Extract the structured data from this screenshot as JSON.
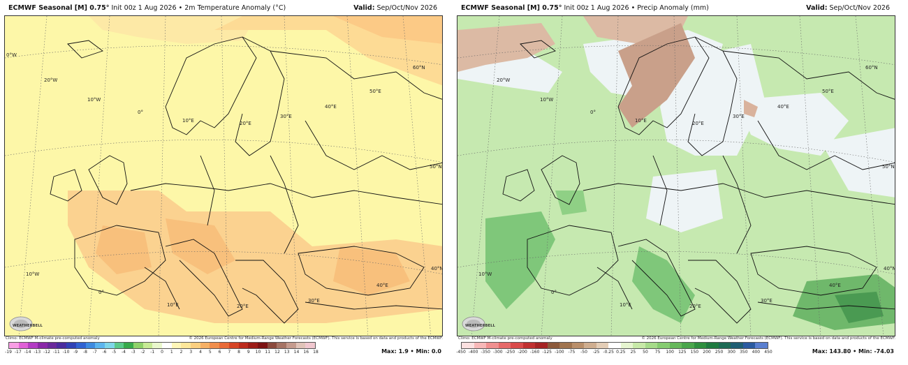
{
  "left": {
    "title_bold": "ECMWF Seasonal [M] 0.75°",
    "title_rest": " Init 00z 1 Aug 2026 • 2m Temperature Anomaly (°C)",
    "valid_bold": "Valid:",
    "valid_rest": " Sep/Oct/Nov 2026",
    "climo": "Climo: ECMWF M-climate pre-computed anomaly",
    "copyright": "© 2026 European Centre for Medium-Range Weather Forecasts (ECMWF). This service is based on data and products of the ECMWF.",
    "maxmin": "Max: 1.9 • Min: 0.0",
    "colorbar_ticks": [
      "-19",
      "-17",
      "-14",
      "-13",
      "-12",
      "-11",
      "-10",
      "-9",
      "-8",
      "-7",
      "-6",
      "-5",
      "-4",
      "-3",
      "-2",
      "-1",
      "0",
      "1",
      "2",
      "3",
      "4",
      "5",
      "6",
      "7",
      "8",
      "9",
      "10",
      "11",
      "12",
      "13",
      "14",
      "16",
      "18"
    ],
    "colorbar_colors": [
      "#f79de4",
      "#e061d7",
      "#b33cc4",
      "#8a28a8",
      "#6a2a9b",
      "#4a2d9e",
      "#3042b5",
      "#3163d1",
      "#3f8be0",
      "#5db5ee",
      "#7fd6e8",
      "#5bc98a",
      "#37a94a",
      "#8fd16a",
      "#c7ea95",
      "#e9f7cc",
      "#ffffff",
      "#fff6b8",
      "#fde79a",
      "#fbcf80",
      "#f6b066",
      "#f08e4d",
      "#e86a38",
      "#d64526",
      "#bc2b1d",
      "#9c1c17",
      "#7c1213",
      "#8b4a3d",
      "#a67465",
      "#c59b8e",
      "#e0c3b8",
      "#f0c7cf"
    ],
    "lat_labels": [
      "60°N",
      "50°N",
      "40°N"
    ],
    "lon_labels": [
      "0°W",
      "20°W",
      "10°W",
      "0°",
      "10°E",
      "20°E",
      "30°E",
      "40°E",
      "50°E",
      "10°W",
      "0°",
      "10°E",
      "20°E",
      "30°E",
      "40°E"
    ]
  },
  "right": {
    "title_bold": "ECMWF Seasonal [M] 0.75°",
    "title_rest": " Init 00z 1 Aug 2026 • Precip Anomaly (mm)",
    "valid_bold": "Valid:",
    "valid_rest": " Sep/Oct/Nov 2026",
    "climo": "Climo: ECMWF M-climate pre-computed anomaly",
    "copyright": "© 2026 European Centre for Medium-Range Weather Forecasts (ECMWF). This service is based on data and products of the ECMWF.",
    "maxmin": "Max: 143.80 • Min: -74.03",
    "colorbar_ticks": [
      "-450",
      "-400",
      "-350",
      "-300",
      "-250",
      "-200",
      "-160",
      "-125",
      "-100",
      "-75",
      "-50",
      "-25",
      "-0.25",
      "0.25",
      "25",
      "50",
      "75",
      "100",
      "125",
      "150",
      "200",
      "250",
      "300",
      "350",
      "400",
      "450"
    ],
    "colorbar_colors": [
      "#fbe0e0",
      "#f7b8b8",
      "#f09090",
      "#e66a6a",
      "#d94a4a",
      "#c03030",
      "#a52424",
      "#8c5a3c",
      "#a0744f",
      "#b98f6b",
      "#cfae90",
      "#e3cdb6",
      "#ffffff",
      "#e6f5d0",
      "#c7e9a8",
      "#a6db8a",
      "#86cc71",
      "#66b85b",
      "#4aa64c",
      "#2f8f3f",
      "#1f7a40",
      "#1d6b55",
      "#1e5e73",
      "#2a5aa0",
      "#5a7fd0"
    ],
    "lat_labels": [
      "60°N",
      "50°N",
      "40°N"
    ],
    "lon_labels": [
      "20°W",
      "10°W",
      "0°",
      "10°E",
      "20°E",
      "30°E",
      "40°E",
      "50°E",
      "10°W",
      "0°",
      "10°E",
      "20°E",
      "30°E",
      "40°E"
    ]
  },
  "logo_text": "WEATHERBELL"
}
